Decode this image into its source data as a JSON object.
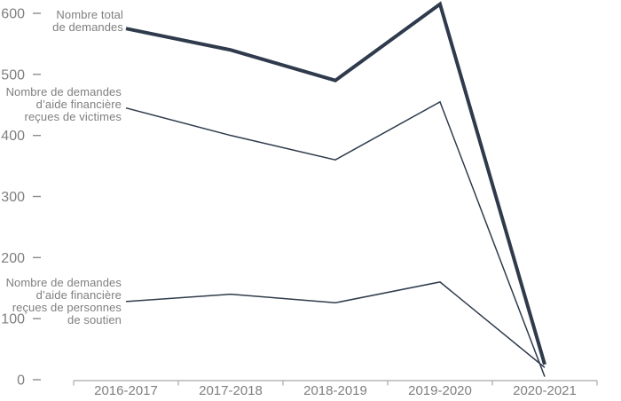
{
  "chart_data": {
    "type": "line",
    "categories": [
      "2016-2017",
      "2017-2018",
      "2018-2019",
      "2019-2020",
      "2020-2021"
    ],
    "series": [
      {
        "name": "Nombre total de demandes",
        "values": [
          575,
          540,
          490,
          615,
          25
        ],
        "weight": "thick"
      },
      {
        "name": "Nombre de demandes d’aide financière reçues de victimes",
        "values": [
          445,
          400,
          360,
          455,
          5
        ],
        "weight": "thin"
      },
      {
        "name": "Nombre de demandes d’aide financière reçues de personnes de soutien",
        "values": [
          128,
          140,
          126,
          160,
          20
        ],
        "weight": "thin"
      }
    ],
    "title": "",
    "xlabel": "",
    "ylabel": "",
    "ylim": [
      0,
      600
    ],
    "yticks": [
      0,
      100,
      200,
      300,
      400,
      500,
      600
    ],
    "grid": false,
    "legend_position": "inline-left-of-first-points",
    "line_color": "#2f3b4c",
    "axis_color": "#a9a9a9",
    "tick_text_color": "#7f7f7f"
  },
  "labels": {
    "total": "Nombre total\nde demandes",
    "victimes": "Nombre de demandes\nd’aide financière\nreçues de victimes",
    "soutien": "Nombre de demandes\nd’aide financière\nreçues de personnes\nde soutien"
  }
}
